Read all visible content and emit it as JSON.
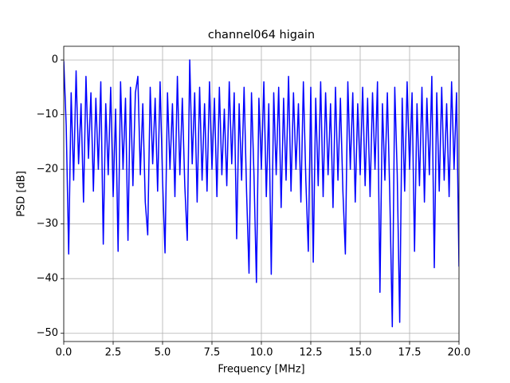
{
  "chart_data": {
    "type": "line",
    "title": "channel064 higain",
    "x_label": "Frequency [MHz]",
    "y_label": "PSD [dB]",
    "color": "#0000ff",
    "grid": true,
    "xlim": [
      0,
      20
    ],
    "ylim": [
      -51.5,
      2.5
    ],
    "xticks": [
      {
        "value": 0,
        "label": "0.0"
      },
      2.5,
      {
        "value": 5,
        "label": "5.0"
      },
      7.5,
      {
        "value": 10,
        "label": "10.0"
      },
      12.5,
      {
        "value": 15,
        "label": "15.0"
      },
      17.5,
      {
        "value": 20,
        "label": "20.0"
      }
    ],
    "yticks": [
      {
        "value": -50,
        "label": "−50"
      },
      {
        "value": -40,
        "label": "−40"
      },
      {
        "value": -30,
        "label": "−30"
      },
      {
        "value": -20,
        "label": "−20"
      },
      {
        "value": -10,
        "label": "−10"
      },
      0
    ],
    "x": [
      0,
      0.125,
      0.25,
      0.375,
      0.5,
      0.625,
      0.75,
      0.875,
      1,
      1.125,
      1.25,
      1.375,
      1.5,
      1.625,
      1.75,
      1.875,
      2,
      2.125,
      2.25,
      2.375,
      2.5,
      2.625,
      2.75,
      2.875,
      3,
      3.125,
      3.25,
      3.375,
      3.5,
      3.625,
      3.75,
      3.875,
      4,
      4.125,
      4.25,
      4.375,
      4.5,
      4.625,
      4.75,
      4.875,
      5,
      5.125,
      5.25,
      5.375,
      5.5,
      5.625,
      5.75,
      5.875,
      6,
      6.125,
      6.25,
      6.375,
      6.5,
      6.625,
      6.75,
      6.875,
      7,
      7.125,
      7.25,
      7.375,
      7.5,
      7.625,
      7.75,
      7.875,
      8,
      8.125,
      8.25,
      8.375,
      8.5,
      8.625,
      8.75,
      8.875,
      9,
      9.125,
      9.25,
      9.375,
      9.5,
      9.625,
      9.75,
      9.875,
      10,
      10.125,
      10.25,
      10.375,
      10.5,
      10.625,
      10.75,
      10.875,
      11,
      11.125,
      11.25,
      11.375,
      11.5,
      11.625,
      11.75,
      11.875,
      12,
      12.125,
      12.25,
      12.375,
      12.5,
      12.625,
      12.75,
      12.875,
      13,
      13.125,
      13.25,
      13.375,
      13.5,
      13.625,
      13.75,
      13.875,
      14,
      14.125,
      14.25,
      14.375,
      14.5,
      14.625,
      14.75,
      14.875,
      15,
      15.125,
      15.25,
      15.375,
      15.5,
      15.625,
      15.75,
      15.875,
      16,
      16.125,
      16.25,
      16.375,
      16.5,
      16.625,
      16.75,
      16.875,
      17,
      17.125,
      17.25,
      17.375,
      17.5,
      17.625,
      17.75,
      17.875,
      18,
      18.125,
      18.25,
      18.375,
      18.5,
      18.625,
      18.75,
      18.875,
      19,
      19.125,
      19.25,
      19.375,
      19.5,
      19.625,
      19.75,
      19.875,
      20
    ],
    "values": [
      -0.2,
      -12,
      -35.5,
      -6,
      -22,
      -2,
      -19,
      -8,
      -26,
      -3,
      -18,
      -6,
      -24,
      -7,
      -20,
      -4,
      -33.7,
      -8,
      -21,
      -5,
      -25,
      -9,
      -35,
      -4,
      -20,
      -7,
      -33,
      -5,
      -23,
      -6,
      -3,
      -21,
      -8,
      -26,
      -32,
      -5,
      -19,
      -7,
      -24,
      -4,
      -22,
      -35.3,
      -6,
      -20,
      -8,
      -25,
      -3,
      -21,
      -7,
      -23,
      -33,
      0,
      -19,
      -6,
      -26,
      -5,
      -22,
      -8,
      -24,
      -4,
      -20,
      -7,
      -25,
      -5,
      -21,
      -9,
      -23,
      -4,
      -19,
      -6,
      -32.7,
      -8,
      -22,
      -5,
      -24,
      -39,
      -6,
      -21,
      -40.7,
      -7,
      -20,
      -4,
      -25,
      -8,
      -39.2,
      -6,
      -21,
      -5,
      -27,
      -7,
      -22,
      -3,
      -24,
      -6,
      -20,
      -8,
      -26,
      -4,
      -22,
      -35,
      -5,
      -37,
      -7,
      -23,
      -4,
      -25,
      -6,
      -21,
      -8,
      -27,
      -5,
      -22,
      -7,
      -24,
      -35.5,
      -4,
      -20,
      -6,
      -26,
      -8,
      -21,
      -5,
      -23,
      -7,
      -25,
      -6,
      -20,
      -4,
      -42.5,
      -8,
      -22,
      -6,
      -25,
      -48.8,
      -5,
      -21,
      -48,
      -7,
      -24,
      -4,
      -20,
      -6,
      -35,
      -8,
      -23,
      -5,
      -26,
      -7,
      -21,
      -3,
      -38,
      -6,
      -24,
      -5,
      -22,
      -8,
      -25,
      -4,
      -20,
      -6,
      -37.8
    ]
  }
}
